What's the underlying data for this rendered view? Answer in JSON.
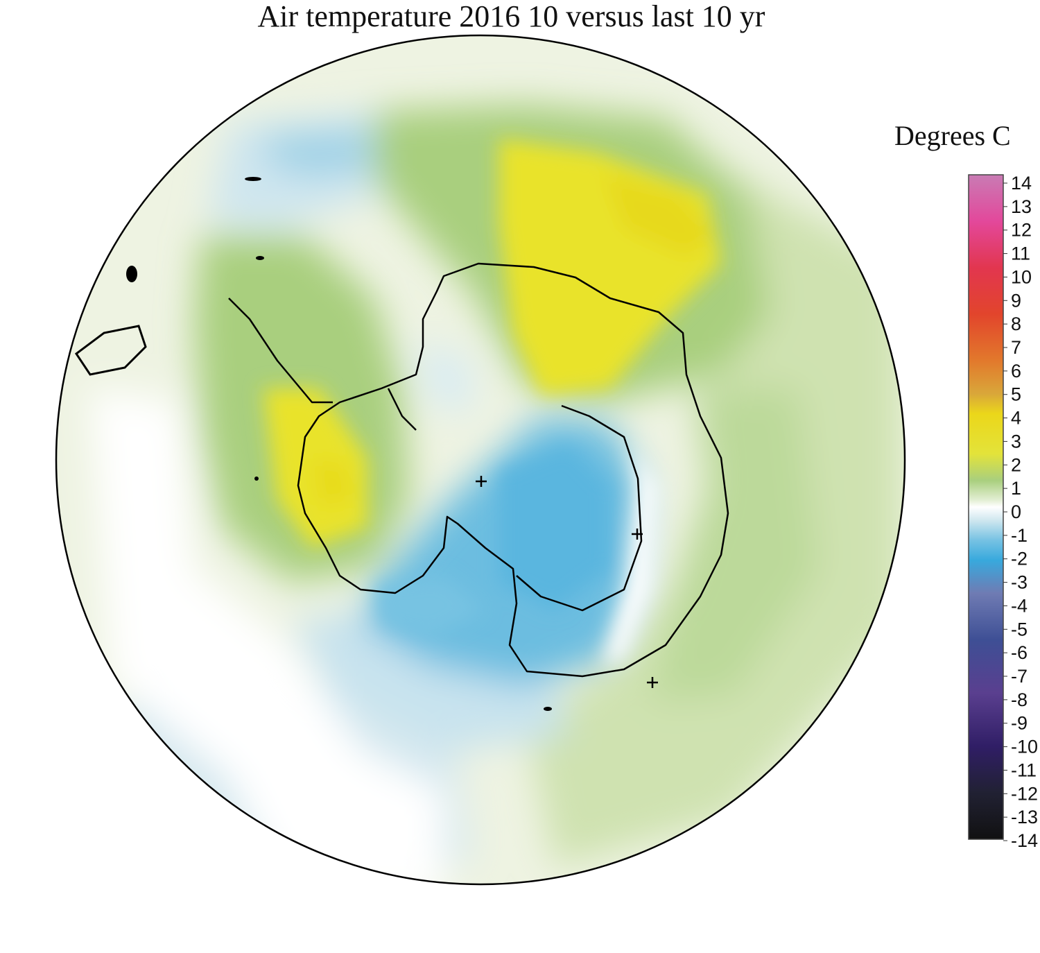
{
  "title": "Air temperature 2016 10 versus last 10 yr",
  "colorbar": {
    "label": "Degrees C",
    "min": -14,
    "max": 14,
    "ticks": [
      "14",
      "13",
      "12",
      "11",
      "10",
      "9",
      "8",
      "7",
      "6",
      "5",
      "4",
      "3",
      "2",
      "1",
      "0",
      "-1",
      "-2",
      "-3",
      "-4",
      "-5",
      "-6",
      "-7",
      "-8",
      "-9",
      "-10",
      "-11",
      "-12",
      "-13",
      "-14"
    ]
  },
  "map": {
    "projection": "south-polar-stereographic",
    "region": "Antarctica and Southern Ocean",
    "markers": [
      "+",
      "+",
      "+"
    ]
  },
  "colors": {
    "warm_green": "#a9cf7e",
    "warm_yellow": "#e9e32a",
    "cool_blue": "#6cbde0",
    "neutral": "#ffffff",
    "outline": "#000000"
  }
}
